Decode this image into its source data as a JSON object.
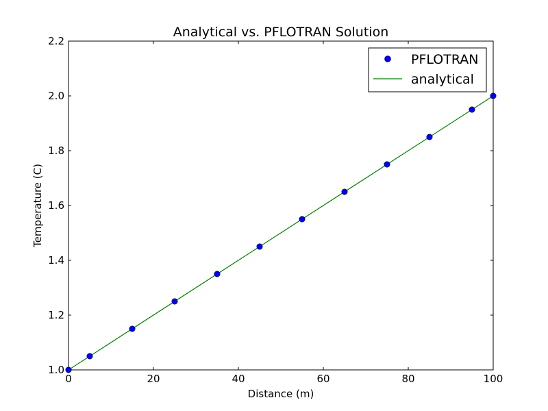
{
  "chart_data": {
    "type": "line",
    "title": "Analytical vs. PFLOTRAN Solution",
    "xlabel": "Distance (m)",
    "ylabel": "Temperature (C)",
    "xlim": [
      0,
      100
    ],
    "ylim": [
      1.0,
      2.2
    ],
    "xticks": [
      "0",
      "20",
      "40",
      "60",
      "80",
      "100"
    ],
    "yticks": [
      "1.0",
      "1.2",
      "1.4",
      "1.6",
      "1.8",
      "2.0",
      "2.2"
    ],
    "grid": false,
    "legend_position": "top-right",
    "series": [
      {
        "name": "PFLOTRAN",
        "style": "markers",
        "color": "#0000ff",
        "x": [
          0,
          5,
          15,
          25,
          35,
          45,
          55,
          65,
          75,
          85,
          95,
          100
        ],
        "y": [
          1.0,
          1.05,
          1.15,
          1.25,
          1.35,
          1.45,
          1.55,
          1.65,
          1.75,
          1.85,
          1.95,
          2.0
        ]
      },
      {
        "name": "analytical",
        "style": "line",
        "color": "#008000",
        "x": [
          0,
          100
        ],
        "y": [
          1.0,
          2.0
        ]
      }
    ]
  }
}
